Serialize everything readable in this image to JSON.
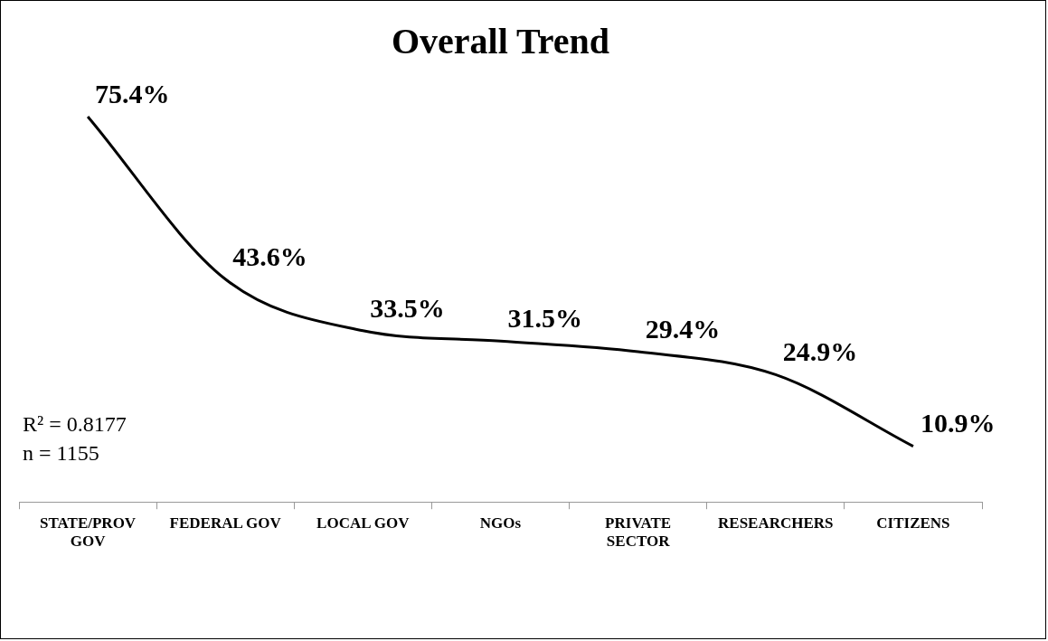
{
  "chart_data": {
    "type": "line",
    "title": "Overall Trend",
    "categories": [
      "STATE/PROV GOV",
      "FEDERAL GOV",
      "LOCAL GOV",
      "NGOs",
      "PRIVATE SECTOR",
      "RESEARCHERS",
      "CITIZENS"
    ],
    "series": [
      {
        "color": "#000000",
        "values": [
          75.4,
          43.6,
          33.5,
          31.5,
          29.4,
          24.9,
          10.9
        ],
        "value_labels": [
          "75.4%",
          "43.6%",
          "33.5%",
          "31.5%",
          "29.4%",
          "24.9%",
          "10.9%"
        ]
      }
    ],
    "marker": "none",
    "line_style": "solid",
    "annotations": [
      "R² = 0.8177",
      "n = 1155"
    ],
    "legend": false
  }
}
